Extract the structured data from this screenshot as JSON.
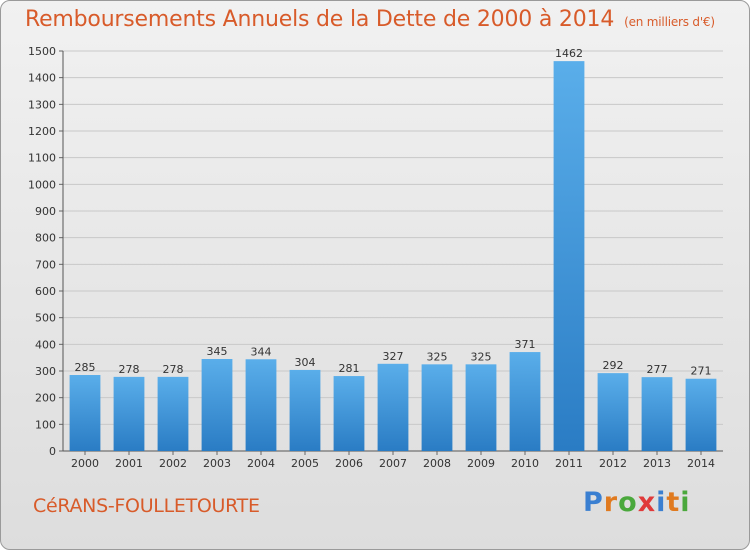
{
  "header": {
    "title": "Remboursements Annuels de la Dette de 2000 à 2014",
    "unit": "(en milliers d'€)"
  },
  "footer": {
    "commune": "CéRANS-FOULLETOURTE",
    "logo_text": "Proxiti",
    "logo_colors": [
      "#3a7fd1",
      "#e07a1f",
      "#4aa83c",
      "#e03a3a",
      "#3a7fd1",
      "#e07a1f",
      "#4aa83c"
    ]
  },
  "chart_data": {
    "type": "bar",
    "title": "Remboursements Annuels de la Dette de 2000 à 2014",
    "xlabel": "",
    "ylabel": "",
    "categories": [
      "2000",
      "2001",
      "2002",
      "2003",
      "2004",
      "2005",
      "2006",
      "2007",
      "2008",
      "2009",
      "2010",
      "2011",
      "2012",
      "2013",
      "2014"
    ],
    "values": [
      285,
      278,
      278,
      345,
      344,
      304,
      281,
      327,
      325,
      325,
      371,
      1462,
      292,
      277,
      271
    ],
    "ylim": [
      0,
      1500
    ],
    "yticks": [
      0,
      100,
      200,
      300,
      400,
      500,
      600,
      700,
      800,
      900,
      1000,
      1100,
      1200,
      1300,
      1400,
      1500
    ],
    "grid": true,
    "bar_color": "#3f93d8",
    "bar_color_light": "#5aaeea",
    "grid_color": "#c8c8c8"
  }
}
